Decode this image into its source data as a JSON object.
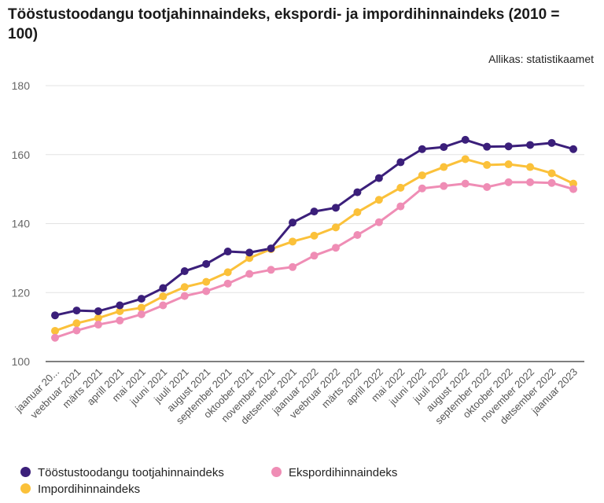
{
  "title": "Tööstustoodangu tootjahinnaindeks, ekspordi- ja impordihinnaindeks (2010 = 100)",
  "source": "Allikas: statistikaamet",
  "chart_data": {
    "type": "line",
    "categories": [
      "jaanuar 20...",
      "veebruar 2021",
      "märts 2021",
      "aprill 2021",
      "mai 2021",
      "juuni 2021",
      "juuli 2021",
      "august 2021",
      "september 2021",
      "oktoober 2021",
      "november 2021",
      "detsember 2021",
      "jaanuar 2022",
      "veebruar 2022",
      "märts 2022",
      "aprill 2022",
      "mai 2022",
      "juuni 2022",
      "juuli 2022",
      "august 2022",
      "september 2022",
      "oktoober 2022",
      "november 2022",
      "detsember 2022",
      "jaanuar 2023"
    ],
    "yticks": [
      100,
      120,
      140,
      160,
      180
    ],
    "ylim": [
      100,
      180
    ],
    "grid": true,
    "legend_position": "bottom-left",
    "series": [
      {
        "name": "Tööstustoodangu tootjahinnaindeks",
        "color": "#3b1f7a",
        "values": [
          113.4,
          114.8,
          114.6,
          116.3,
          118.2,
          121.3,
          126.2,
          128.3,
          131.9,
          131.6,
          132.8,
          140.3,
          143.5,
          144.6,
          149.1,
          153.2,
          157.8,
          161.6,
          162.2,
          164.3,
          162.3,
          162.4,
          162.8,
          163.4,
          161.6
        ]
      },
      {
        "name": "Ekspordihinnaindeks",
        "color": "#ef8db5",
        "values": [
          106.9,
          109.0,
          110.7,
          111.9,
          113.7,
          116.3,
          119.0,
          120.4,
          122.6,
          125.4,
          126.6,
          127.4,
          130.7,
          133.0,
          136.7,
          140.4,
          145.0,
          150.2,
          150.9,
          151.6,
          150.6,
          152.0,
          152.0,
          151.8,
          150.0
        ]
      },
      {
        "name": "Impordihinnaindeks",
        "color": "#fbc13a",
        "values": [
          108.9,
          111.1,
          112.6,
          114.6,
          115.6,
          118.9,
          121.6,
          123.1,
          125.9,
          130.0,
          132.6,
          134.8,
          136.5,
          138.9,
          143.3,
          146.9,
          150.4,
          154.0,
          156.4,
          158.7,
          157.0,
          157.2,
          156.4,
          154.6,
          151.6
        ]
      }
    ]
  }
}
